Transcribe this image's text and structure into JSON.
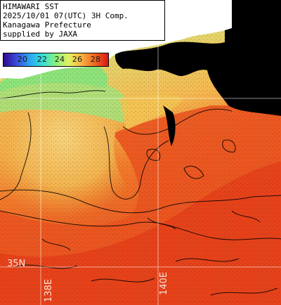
{
  "header": {
    "line1": "HIMAWARI SST",
    "line2": "2025/10/01 07(UTC) 3H Comp.",
    "line3": "Kanagawa Prefecture",
    "line4": "supplied by JAXA"
  },
  "colorbar": {
    "labels": [
      "20",
      "22",
      "24",
      "26",
      "28"
    ],
    "colors": [
      "#2c0a8c",
      "#3b4bdc",
      "#2aa6f0",
      "#38e0d8",
      "#8af07c",
      "#e6f060",
      "#f8b040",
      "#f06420",
      "#d81818"
    ]
  },
  "grid_labels": {
    "lat_left": "35N",
    "lon_left": "138E",
    "lon_right": "140E"
  },
  "palette": {
    "land": "#000000",
    "no_data": "#ffffff",
    "sea_warm": "#e8461c",
    "sea_mid": "#f0a040",
    "sea_cool": "#b8e070",
    "sea_green": "#8ee27a"
  }
}
